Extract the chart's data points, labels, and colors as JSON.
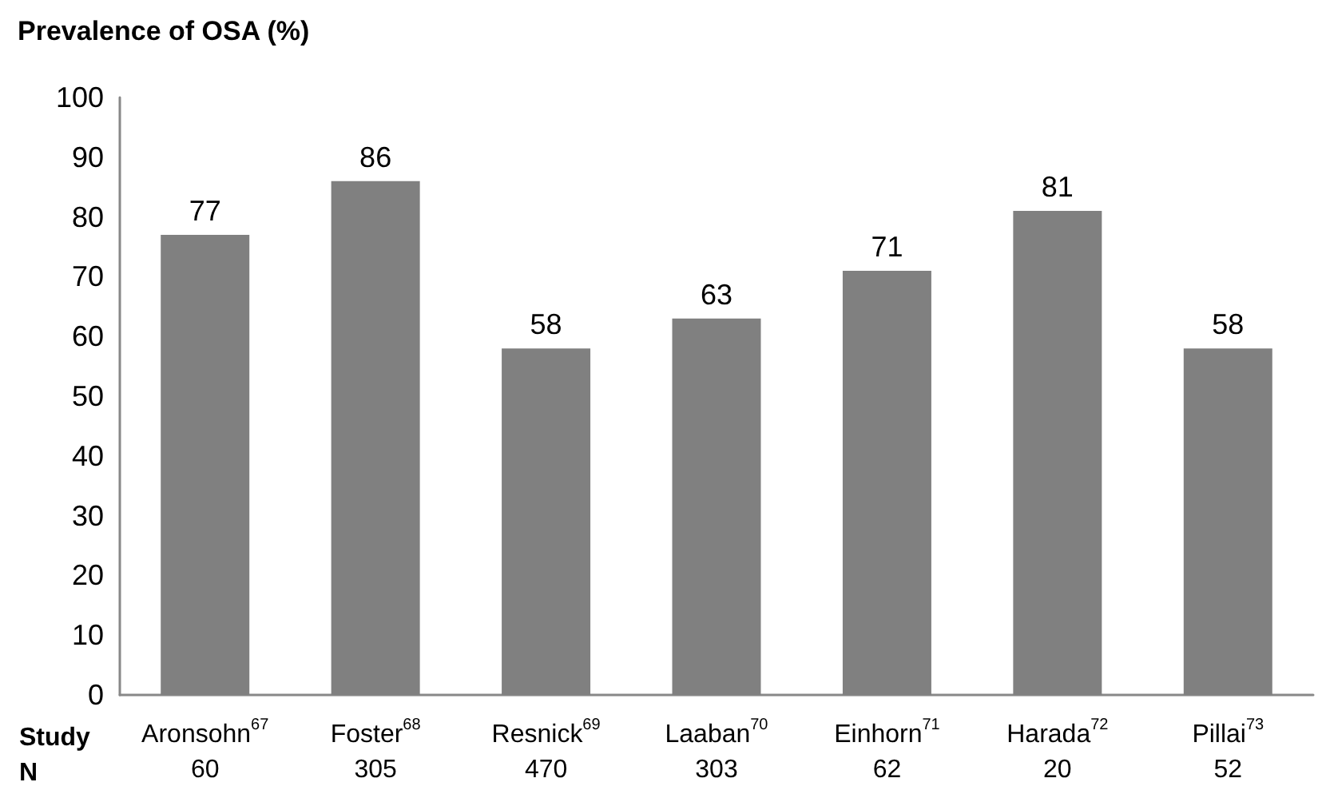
{
  "chart_data": {
    "type": "bar",
    "title": "Prevalence of OSA (%)",
    "categories": [
      "Aronsohn$^{67}$\n60",
      "Foster$^{68}$\n305",
      "Resnick$^{69}$\n470",
      "Laaban$^{70}$\n303",
      "Einhorn$^{71}$\n62",
      "Harada$^{72}$\n20",
      "Pillai$^{73}$\n52"
    ],
    "values": [
      77,
      86,
      58,
      63,
      71,
      81,
      58
    ],
    "color": "#808080",
    "ylim": [
      0,
      100
    ],
    "yticks": [
      0,
      10,
      20,
      30,
      40,
      50,
      60,
      70,
      80,
      90,
      100
    ],
    "grid": false,
    "data_labels": true,
    "annotations": [
      "Study",
      "N"
    ]
  }
}
